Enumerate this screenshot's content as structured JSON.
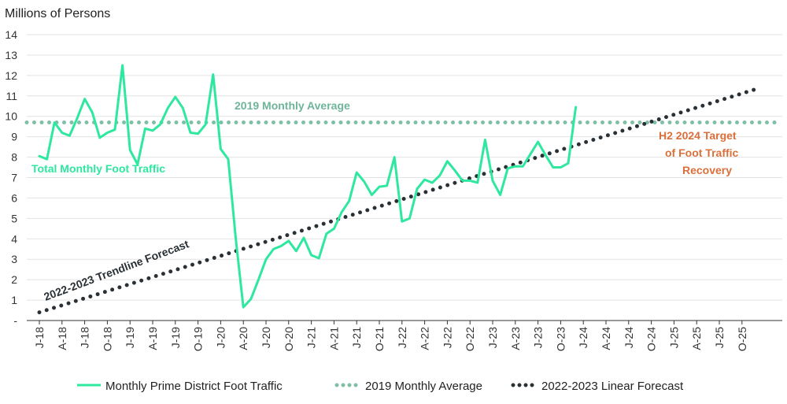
{
  "chart_data": {
    "type": "line",
    "ylabel": "Millions of Persons",
    "ylim": [
      0,
      14
    ],
    "y_ticks": [
      {
        "value": 0,
        "label": "-"
      },
      {
        "value": 1,
        "label": "1"
      },
      {
        "value": 2,
        "label": "2"
      },
      {
        "value": 3,
        "label": "3"
      },
      {
        "value": 4,
        "label": "4"
      },
      {
        "value": 5,
        "label": "5"
      },
      {
        "value": 6,
        "label": "6"
      },
      {
        "value": 7,
        "label": "7"
      },
      {
        "value": 8,
        "label": "8"
      },
      {
        "value": 9,
        "label": "9"
      },
      {
        "value": 10,
        "label": "10"
      },
      {
        "value": 11,
        "label": "11"
      },
      {
        "value": 12,
        "label": "12"
      },
      {
        "value": 13,
        "label": "13"
      },
      {
        "value": 14,
        "label": "14"
      }
    ],
    "x_tick_labels": [
      "J-18",
      "A-18",
      "J-18",
      "O-18",
      "J-19",
      "A-19",
      "J-19",
      "O-19",
      "J-20",
      "A-20",
      "J-20",
      "O-20",
      "J-21",
      "A-21",
      "J-21",
      "O-21",
      "J-22",
      "A-22",
      "J-22",
      "O-22",
      "J-23",
      "A-23",
      "J-23",
      "O-23",
      "J-24",
      "A-24",
      "J-24",
      "O-24",
      "J-25",
      "A-25",
      "J-25",
      "O-25"
    ],
    "x_period_count": 96,
    "series": [
      {
        "name": "Monthly Prime District Foot Traffic",
        "color": "#2ee8a0",
        "style": "solid",
        "values": [
          8.05,
          7.9,
          9.7,
          9.2,
          9.05,
          9.9,
          10.85,
          10.2,
          8.95,
          9.2,
          9.35,
          12.5,
          8.35,
          7.65,
          9.4,
          9.3,
          9.6,
          10.4,
          10.95,
          10.4,
          9.2,
          9.15,
          9.6,
          12.05,
          8.4,
          7.9,
          4.0,
          0.65,
          1.05,
          2.0,
          3.0,
          3.5,
          3.65,
          3.9,
          3.4,
          4.05,
          3.2,
          3.05,
          4.25,
          4.5,
          5.3,
          5.85,
          7.25,
          6.8,
          6.15,
          6.55,
          6.6,
          8.0,
          4.85,
          5.0,
          6.45,
          6.9,
          6.75,
          7.1,
          7.8,
          7.35,
          6.85,
          6.85,
          6.75,
          8.85,
          6.85,
          6.15,
          7.45,
          7.55,
          7.55,
          8.15,
          8.75,
          8.1,
          7.5,
          7.5,
          7.7,
          10.45
        ]
      },
      {
        "name": "2019 Monthly Average",
        "color": "#7fbfa5",
        "style": "dotted",
        "values": [
          9.7,
          9.7
        ]
      },
      {
        "name": "2022-2023 Linear Forecast",
        "color": "#2a3136",
        "style": "dotted",
        "values": [
          0.4,
          11.35
        ]
      }
    ],
    "annotations": [
      {
        "text": "2019 Monthly Average",
        "color": "#6fb59a"
      },
      {
        "text": "Total Monthly Foot Traffic",
        "color": "#2ee8a0"
      },
      {
        "text": "2022-2023 Trendline Forecast",
        "color": "#2a3136"
      },
      {
        "lines": [
          "H2 2024 Target",
          "of Foot Traffic",
          "Recovery"
        ],
        "color": "#d9703c"
      }
    ],
    "legend": [
      {
        "label": "Monthly Prime District Foot Traffic",
        "style": "solid",
        "color": "#2ee8a0"
      },
      {
        "label": "2019 Monthly Average",
        "style": "dotted",
        "color": "#7fbfa5"
      },
      {
        "label": "2022-2023 Linear Forecast",
        "style": "dotted",
        "color": "#2a3136"
      }
    ],
    "legend_position": "bottom-center"
  }
}
